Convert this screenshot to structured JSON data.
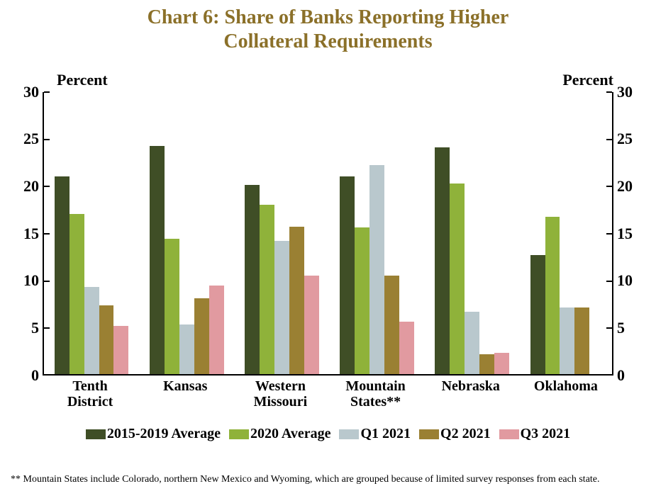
{
  "chart": {
    "type": "bar-grouped",
    "title_line1": "Chart 6: Share of Banks Reporting Higher",
    "title_line2": "Collateral Requirements",
    "title_color": "#8b7029",
    "title_fontsize": 28,
    "y_label_left": "Percent",
    "y_label_right": "Percent",
    "y_label_fontsize": 22,
    "ylim_min": 0,
    "ylim_max": 30,
    "ytick_step": 5,
    "yticks": [
      0,
      5,
      10,
      15,
      20,
      25,
      30
    ],
    "tick_fontsize": 22,
    "x_label_fontsize": 20,
    "legend_fontsize": 20,
    "footnote_fontsize": 14,
    "background_color": "#ffffff",
    "axis_color": "#000000",
    "series": [
      {
        "name": "2015-2019 Average",
        "color": "#3f4e26"
      },
      {
        "name": "2020 Average",
        "color": "#8fb23a"
      },
      {
        "name": "Q1 2021",
        "color": "#b9c8cd"
      },
      {
        "name": "Q2 2021",
        "color": "#9a8033"
      },
      {
        "name": "Q3 2021",
        "color": "#e19aa0"
      }
    ],
    "categories": [
      {
        "label_line1": "Tenth",
        "label_line2": "District",
        "values": [
          21.0,
          17.0,
          9.3,
          7.3,
          5.1
        ]
      },
      {
        "label_line1": "Kansas",
        "label_line2": "",
        "values": [
          24.3,
          14.4,
          5.3,
          8.1,
          9.4
        ]
      },
      {
        "label_line1": "Western",
        "label_line2": "Missouri",
        "values": [
          20.1,
          18.0,
          14.2,
          15.7,
          10.5
        ]
      },
      {
        "label_line1": "Mountain",
        "label_line2": "States**",
        "values": [
          21.0,
          15.6,
          22.2,
          10.5,
          5.6
        ]
      },
      {
        "label_line1": "Nebraska",
        "label_line2": "",
        "values": [
          24.1,
          20.3,
          6.6,
          2.1,
          2.3
        ]
      },
      {
        "label_line1": "Oklahoma",
        "label_line2": "",
        "values": [
          12.7,
          16.7,
          7.1,
          7.1,
          0.0
        ]
      }
    ],
    "footnote": "** Mountain States include Colorado, northern New Mexico and Wyoming, which are grouped because of limited survey responses from each state."
  }
}
